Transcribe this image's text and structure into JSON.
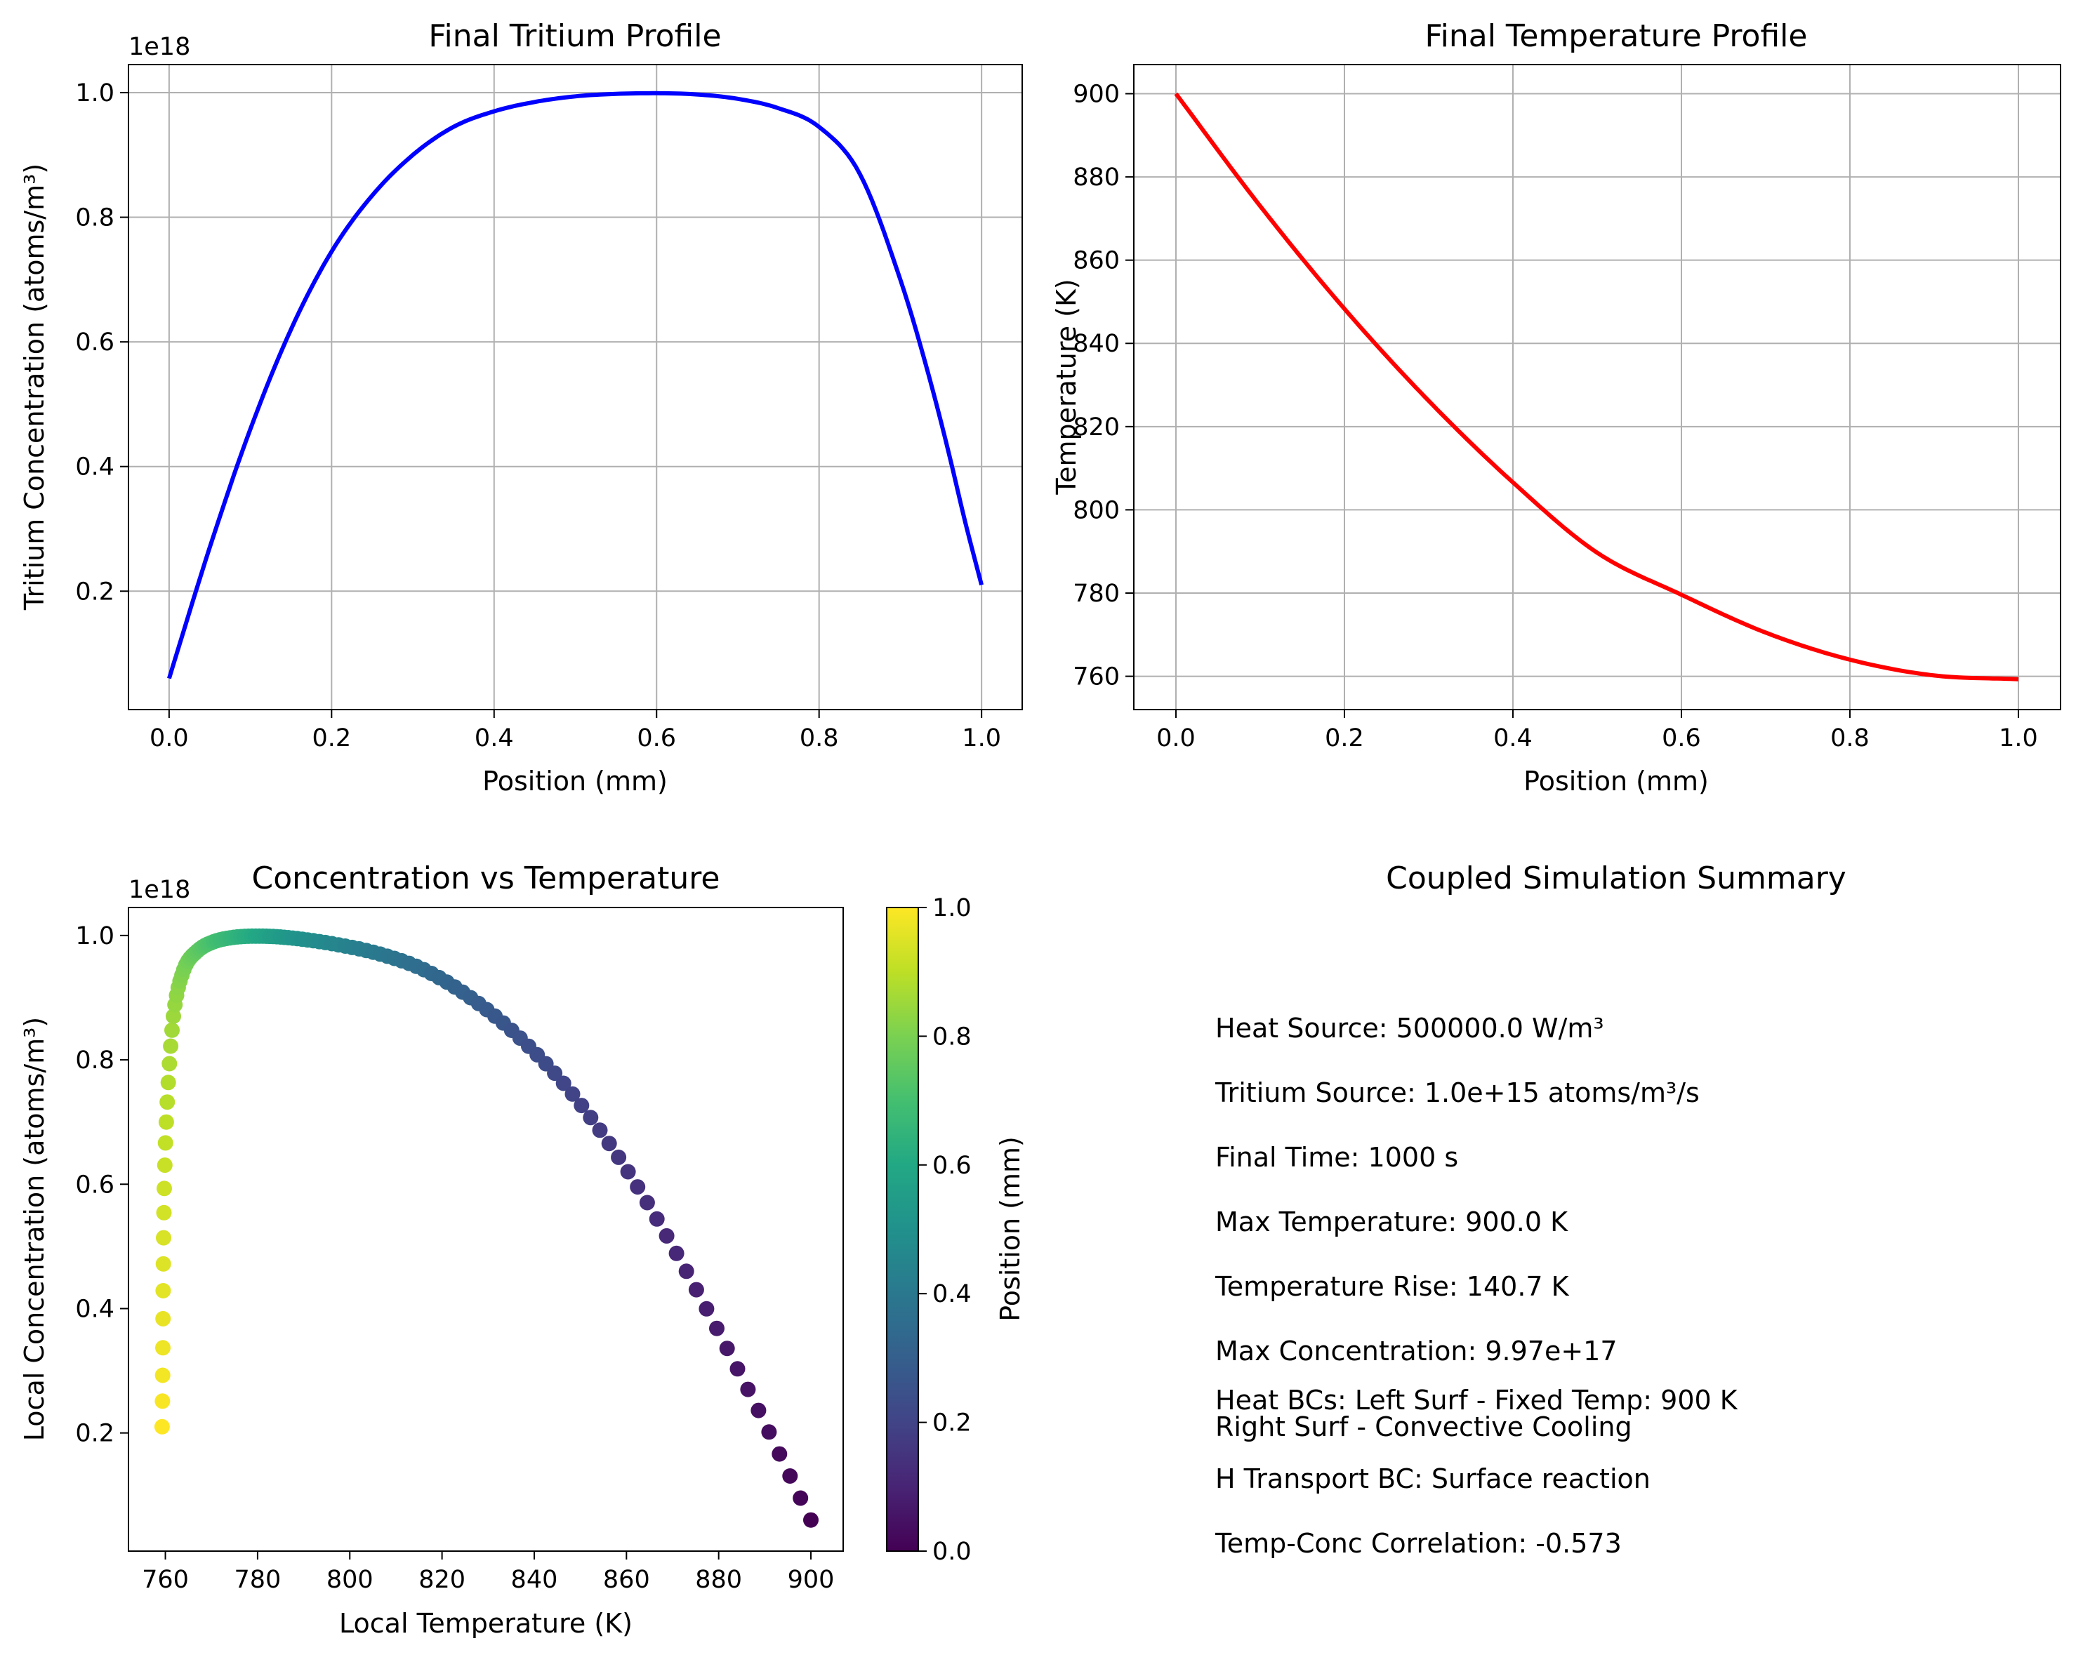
{
  "chart_data": [
    {
      "type": "line",
      "title": "Final Tritium Profile",
      "xlabel": "Position (mm)",
      "ylabel": "Tritium Concentration (atoms/m³)",
      "offset_label": "1e18",
      "xlim": [
        -0.05,
        1.05
      ],
      "ylim": [
        0.01,
        1.045
      ],
      "xticks": [
        0.0,
        0.2,
        0.4,
        0.6,
        0.8,
        1.0
      ],
      "xtick_labels": [
        "0.0",
        "0.2",
        "0.4",
        "0.6",
        "0.8",
        "1.0"
      ],
      "yticks": [
        0.2,
        0.4,
        0.6,
        0.8,
        1.0
      ],
      "ytick_labels": [
        "0.2",
        "0.4",
        "0.6",
        "0.8",
        "1.0"
      ],
      "grid": true,
      "series": [
        {
          "color": "#0000ff",
          "x": [
            0.0,
            0.05,
            0.1,
            0.15,
            0.2,
            0.25,
            0.3,
            0.35,
            0.4,
            0.45,
            0.5,
            0.55,
            0.6,
            0.65,
            0.7,
            0.75,
            0.8,
            0.85,
            0.9,
            0.93,
            0.96,
            0.98,
            1.0
          ],
          "y": [
            0.06,
            0.27,
            0.46,
            0.62,
            0.745,
            0.835,
            0.9,
            0.945,
            0.97,
            0.985,
            0.994,
            0.998,
            0.999,
            0.997,
            0.99,
            0.975,
            0.945,
            0.87,
            0.7,
            0.57,
            0.42,
            0.31,
            0.21
          ]
        }
      ]
    },
    {
      "type": "line",
      "title": "Final Temperature Profile",
      "xlabel": "Position (mm)",
      "ylabel": "Temperature (K)",
      "xlim": [
        -0.05,
        1.05
      ],
      "ylim": [
        752,
        907
      ],
      "xticks": [
        0.0,
        0.2,
        0.4,
        0.6,
        0.8,
        1.0
      ],
      "xtick_labels": [
        "0.0",
        "0.2",
        "0.4",
        "0.6",
        "0.8",
        "1.0"
      ],
      "yticks": [
        760,
        780,
        800,
        820,
        840,
        860,
        880,
        900
      ],
      "ytick_labels": [
        "760",
        "780",
        "800",
        "820",
        "840",
        "860",
        "880",
        "900"
      ],
      "grid": true,
      "series": [
        {
          "color": "#ff0000",
          "x": [
            0.0,
            0.1,
            0.2,
            0.3,
            0.4,
            0.5,
            0.6,
            0.7,
            0.8,
            0.9,
            1.0
          ],
          "y": [
            900.0,
            873.0,
            848.3,
            826.2,
            806.6,
            789.7,
            779.6,
            770.5,
            764.0,
            760.2,
            759.3
          ]
        }
      ]
    },
    {
      "type": "scatter",
      "title": "Concentration vs Temperature",
      "xlabel": "Local Temperature (K)",
      "ylabel": "Local Concentration (atoms/m³)",
      "offset_label": "1e18",
      "xlim": [
        752,
        907
      ],
      "ylim": [
        0.01,
        1.045
      ],
      "xticks": [
        760,
        780,
        800,
        820,
        840,
        860,
        880,
        900
      ],
      "xtick_labels": [
        "760",
        "780",
        "800",
        "820",
        "840",
        "860",
        "880",
        "900"
      ],
      "yticks": [
        0.2,
        0.4,
        0.6,
        0.8,
        1.0
      ],
      "ytick_labels": [
        "0.2",
        "0.4",
        "0.6",
        "0.8",
        "1.0"
      ],
      "grid": false,
      "colormap": "viridis",
      "colorbar": {
        "label": "Position (mm)",
        "range": [
          0.0,
          1.0
        ],
        "ticks": [
          0.0,
          0.2,
          0.4,
          0.6,
          0.8,
          1.0
        ],
        "tick_labels": [
          "0.0",
          "0.2",
          "0.4",
          "0.6",
          "0.8",
          "1.0"
        ]
      },
      "series": [
        {
          "x_source": "temperature-profile",
          "y_source": "tritium-profile",
          "color_by": "position"
        }
      ]
    }
  ],
  "summary": {
    "title": "Coupled Simulation Summary",
    "lines": [
      "Heat Source: 500000.0 W/m³",
      "Tritium Source: 1.0e+15 atoms/m³/s",
      "Final Time: 1000 s",
      "Max Temperature: 900.0 K",
      "Temperature Rise: 140.7 K",
      "Max Concentration: 9.97e+17",
      "Heat BCs: Left Surf - Fixed Temp: 900 K",
      "Right Surf - Convective Cooling",
      "H Transport BC: Surface reaction",
      "Temp-Conc Correlation: -0.573"
    ]
  }
}
